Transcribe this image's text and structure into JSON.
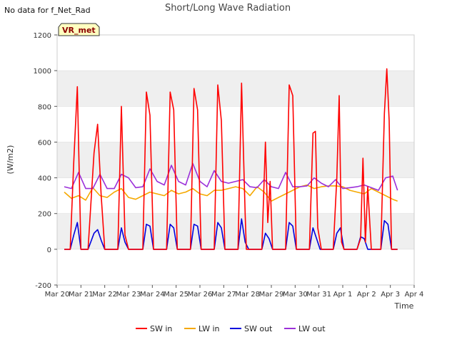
{
  "no_data_note": "No data for f_Net_Rad",
  "badge_label": "VR_met",
  "chart_data": {
    "type": "line",
    "title": "Short/Long Wave Radiation",
    "xlabel": "Time",
    "ylabel": "(W/m2)",
    "ylim": [
      -200,
      1200
    ],
    "xlim": [
      0,
      15
    ],
    "yticks": [
      -200,
      0,
      200,
      400,
      600,
      800,
      1000,
      1200
    ],
    "xticks": [
      {
        "x": 0,
        "label": "Mar 20"
      },
      {
        "x": 1,
        "label": "Mar 21"
      },
      {
        "x": 2,
        "label": "Mar 22"
      },
      {
        "x": 3,
        "label": "Mar 23"
      },
      {
        "x": 4,
        "label": "Mar 24"
      },
      {
        "x": 5,
        "label": "Mar 25"
      },
      {
        "x": 6,
        "label": "Mar 26"
      },
      {
        "x": 7,
        "label": "Mar 27"
      },
      {
        "x": 8,
        "label": "Mar 28"
      },
      {
        "x": 9,
        "label": "Mar 29"
      },
      {
        "x": 10,
        "label": "Mar 30"
      },
      {
        "x": 11,
        "label": "Mar 31"
      },
      {
        "x": 12,
        "label": "Apr 1"
      },
      {
        "x": 13,
        "label": "Apr 2"
      },
      {
        "x": 14,
        "label": "Apr 3"
      },
      {
        "x": 15,
        "label": "Apr 4"
      }
    ],
    "grid": "horizontal bands",
    "legend_placement": "bottom-center",
    "series": [
      {
        "name": "SW in",
        "color": "#ff0000",
        "x": [
          0.3,
          0.55,
          0.7,
          0.85,
          1.0,
          1.15,
          1.3,
          1.55,
          1.7,
          1.85,
          2.0,
          2.15,
          2.3,
          2.55,
          2.7,
          2.85,
          3.0,
          3.15,
          3.3,
          3.6,
          3.75,
          3.9,
          4.05,
          4.2,
          4.35,
          4.6,
          4.75,
          4.9,
          5.05,
          5.2,
          5.35,
          5.6,
          5.75,
          5.9,
          6.05,
          6.2,
          6.35,
          6.6,
          6.75,
          6.9,
          7.05,
          7.2,
          7.35,
          7.6,
          7.75,
          7.9,
          7.95,
          8.05,
          8.2,
          8.35,
          8.6,
          8.75,
          8.85,
          8.95,
          9.05,
          9.2,
          9.35,
          9.6,
          9.75,
          9.9,
          10.05,
          10.2,
          10.35,
          10.6,
          10.75,
          10.85,
          10.95,
          11.1,
          11.25,
          11.6,
          11.75,
          11.85,
          11.95,
          12.05,
          12.2,
          12.35,
          12.6,
          12.75,
          12.85,
          12.95,
          13.05,
          13.2,
          13.35,
          13.6,
          13.75,
          13.85,
          13.95,
          14.05,
          14.2,
          14.3
        ],
        "values": [
          0,
          0,
          490,
          910,
          0,
          0,
          0,
          540,
          700,
          300,
          0,
          0,
          0,
          0,
          800,
          80,
          0,
          0,
          0,
          0,
          880,
          750,
          0,
          0,
          0,
          0,
          880,
          780,
          0,
          0,
          0,
          0,
          900,
          780,
          0,
          0,
          0,
          0,
          920,
          720,
          0,
          0,
          0,
          0,
          930,
          200,
          0,
          0,
          0,
          0,
          0,
          600,
          150,
          380,
          0,
          0,
          0,
          0,
          920,
          860,
          0,
          0,
          0,
          0,
          650,
          660,
          120,
          0,
          0,
          0,
          400,
          860,
          40,
          0,
          0,
          0,
          0,
          60,
          510,
          40,
          350,
          0,
          0,
          0,
          760,
          1010,
          720,
          0,
          0,
          0
        ]
      },
      {
        "name": "LW in",
        "color": "#f5a800",
        "x": [
          0.3,
          0.6,
          0.9,
          1.2,
          1.5,
          1.8,
          2.1,
          2.4,
          2.7,
          3.0,
          3.3,
          3.6,
          3.9,
          4.2,
          4.5,
          4.8,
          5.1,
          5.4,
          5.7,
          6.0,
          6.3,
          6.6,
          6.9,
          7.2,
          7.5,
          7.8,
          8.1,
          8.4,
          8.7,
          9.0,
          9.3,
          9.6,
          9.9,
          10.2,
          10.5,
          10.8,
          11.1,
          11.4,
          11.7,
          12.0,
          12.3,
          12.6,
          12.9,
          13.2,
          13.5,
          13.8,
          14.1,
          14.3
        ],
        "values": [
          320,
          285,
          300,
          275,
          345,
          300,
          290,
          320,
          340,
          290,
          280,
          300,
          320,
          310,
          300,
          330,
          310,
          320,
          340,
          310,
          300,
          330,
          330,
          340,
          350,
          340,
          300,
          350,
          320,
          270,
          290,
          310,
          330,
          350,
          360,
          340,
          350,
          355,
          355,
          350,
          330,
          320,
          310,
          340,
          320,
          300,
          280,
          270
        ]
      },
      {
        "name": "SW out",
        "color": "#0000dd",
        "x": [
          0.3,
          0.55,
          0.7,
          0.85,
          1.0,
          1.15,
          1.3,
          1.55,
          1.7,
          1.85,
          2.0,
          2.15,
          2.3,
          2.55,
          2.7,
          2.85,
          3.0,
          3.15,
          3.3,
          3.6,
          3.75,
          3.9,
          4.05,
          4.2,
          4.35,
          4.6,
          4.75,
          4.9,
          5.05,
          5.2,
          5.35,
          5.6,
          5.75,
          5.9,
          6.05,
          6.2,
          6.35,
          6.6,
          6.75,
          6.9,
          7.05,
          7.2,
          7.35,
          7.6,
          7.75,
          7.9,
          8.05,
          8.2,
          8.35,
          8.6,
          8.75,
          8.9,
          9.05,
          9.2,
          9.35,
          9.6,
          9.75,
          9.9,
          10.05,
          10.2,
          10.35,
          10.6,
          10.75,
          10.9,
          11.05,
          11.2,
          11.35,
          11.6,
          11.75,
          11.9,
          12.05,
          12.2,
          12.35,
          12.6,
          12.75,
          12.9,
          13.05,
          13.2,
          13.35,
          13.6,
          13.75,
          13.9,
          14.05,
          14.2,
          14.3
        ],
        "values": [
          0,
          0,
          80,
          150,
          0,
          0,
          0,
          90,
          110,
          50,
          0,
          0,
          0,
          0,
          120,
          40,
          0,
          0,
          0,
          0,
          140,
          130,
          0,
          0,
          0,
          0,
          140,
          120,
          0,
          0,
          0,
          0,
          140,
          130,
          0,
          0,
          0,
          0,
          150,
          120,
          0,
          0,
          0,
          0,
          170,
          40,
          0,
          0,
          0,
          0,
          90,
          60,
          0,
          0,
          0,
          0,
          150,
          130,
          0,
          0,
          0,
          0,
          120,
          60,
          0,
          0,
          0,
          0,
          90,
          120,
          0,
          0,
          0,
          0,
          70,
          60,
          0,
          0,
          0,
          0,
          160,
          140,
          0,
          0,
          0
        ]
      },
      {
        "name": "LW out",
        "color": "#9b30d9",
        "x": [
          0.3,
          0.6,
          0.9,
          1.2,
          1.5,
          1.8,
          2.1,
          2.4,
          2.7,
          3.0,
          3.3,
          3.6,
          3.9,
          4.2,
          4.5,
          4.8,
          5.1,
          5.4,
          5.7,
          6.0,
          6.3,
          6.6,
          6.9,
          7.2,
          7.5,
          7.8,
          8.1,
          8.4,
          8.7,
          9.0,
          9.3,
          9.6,
          9.9,
          10.2,
          10.5,
          10.8,
          11.1,
          11.4,
          11.7,
          12.0,
          12.3,
          12.6,
          12.9,
          13.2,
          13.5,
          13.8,
          14.1,
          14.3
        ],
        "values": [
          350,
          340,
          430,
          340,
          340,
          420,
          340,
          340,
          420,
          400,
          345,
          350,
          450,
          380,
          360,
          470,
          380,
          360,
          480,
          380,
          350,
          440,
          380,
          370,
          380,
          390,
          350,
          345,
          390,
          350,
          340,
          430,
          350,
          350,
          355,
          400,
          370,
          350,
          390,
          340,
          345,
          350,
          360,
          345,
          330,
          400,
          410,
          330
        ]
      }
    ]
  }
}
